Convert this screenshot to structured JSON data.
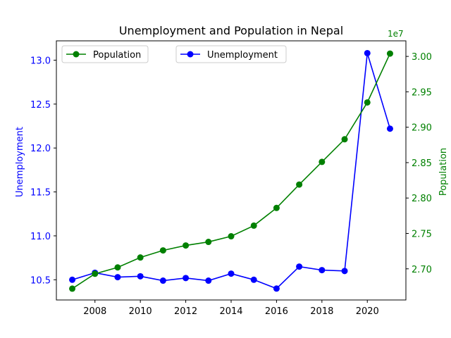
{
  "chart_data": {
    "type": "line",
    "title": "Unemployment and Population in Nepal",
    "x": [
      2007,
      2008,
      2009,
      2010,
      2011,
      2012,
      2013,
      2014,
      2015,
      2016,
      2017,
      2018,
      2019,
      2020,
      2021
    ],
    "x_ticks": [
      "2008",
      "2010",
      "2012",
      "2014",
      "2016",
      "2018",
      "2020"
    ],
    "xlim": [
      2006.3,
      2021.7
    ],
    "series": [
      {
        "name": "Unemployment",
        "axis": "left",
        "color": "#0000ff",
        "values": [
          10.5,
          10.58,
          10.53,
          10.54,
          10.49,
          10.52,
          10.49,
          10.57,
          10.5,
          10.4,
          10.65,
          10.61,
          10.6,
          13.08,
          12.22
        ]
      },
      {
        "name": "Population",
        "axis": "right",
        "color": "#008000",
        "values": [
          26720000,
          26930000,
          27020000,
          27160000,
          27260000,
          27330000,
          27380000,
          27460000,
          27610000,
          27860000,
          28190000,
          28510000,
          28830000,
          29350000,
          30040000
        ]
      }
    ],
    "y_left": {
      "label": "Unemployment",
      "color": "#0000ff",
      "ylim": [
        10.27,
        13.22
      ],
      "ticks": [
        "10.5",
        "11.0",
        "11.5",
        "12.0",
        "12.5",
        "13.0"
      ]
    },
    "y_right": {
      "label": "Population",
      "color": "#008000",
      "ylim": [
        26560000,
        30220000
      ],
      "ticks": [
        "2.70",
        "2.75",
        "2.80",
        "2.85",
        "2.90",
        "2.95",
        "3.00"
      ],
      "ticks_value": [
        27000000,
        27500000,
        28000000,
        28500000,
        29000000,
        29500000,
        30000000
      ],
      "offset_text": "1e7"
    },
    "legends": [
      {
        "entry": "Population",
        "placement": "upper-left"
      },
      {
        "entry": "Unemployment",
        "placement": "upper-center"
      }
    ],
    "grid": false
  }
}
